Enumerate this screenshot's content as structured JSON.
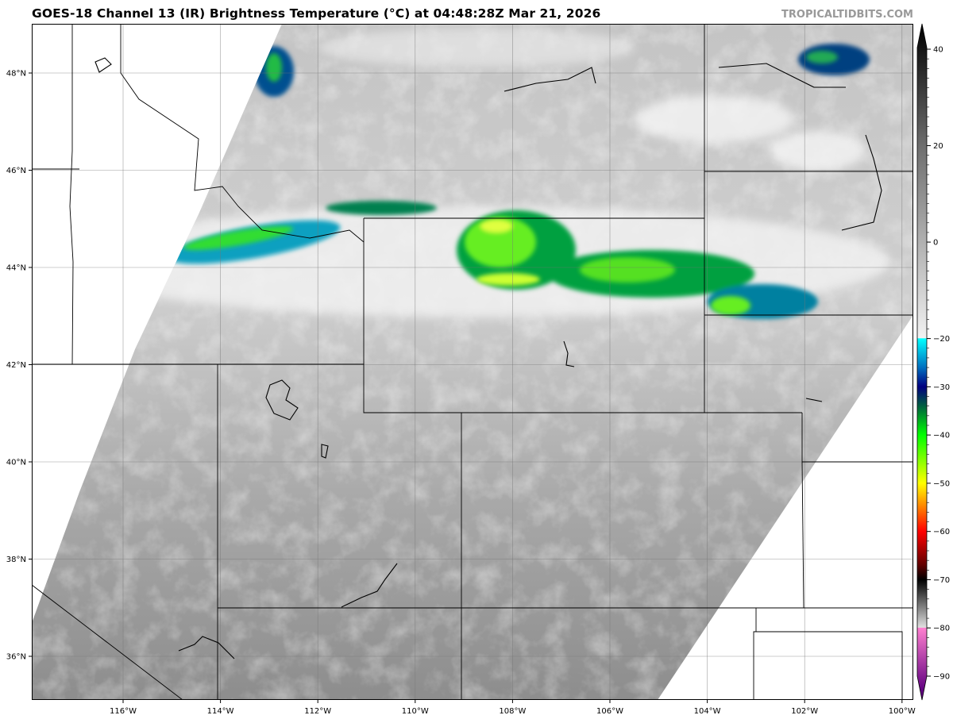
{
  "header": {
    "title": "GOES-18 Channel 13 (IR) Brightness Temperature (°C) at 04:48:28Z Mar 21, 2026",
    "watermark": "TROPICALTIDBITS.COM"
  },
  "map": {
    "latitude_labels": [
      "48°N",
      "46°N",
      "44°N",
      "42°N",
      "40°N",
      "38°N",
      "36°N"
    ],
    "latitudes": [
      48,
      46,
      44,
      42,
      40,
      38,
      36
    ],
    "longitude_labels": [
      "116°W",
      "114°W",
      "112°W",
      "110°W",
      "108°W",
      "106°W",
      "104°W",
      "102°W",
      "100°W"
    ],
    "longitudes": [
      116,
      114,
      112,
      110,
      108,
      106,
      104,
      102,
      100
    ],
    "extent": {
      "lon_west": 117.9,
      "lon_east": 99.8,
      "lat_south": 35.1,
      "lat_north": 49.0
    }
  },
  "colorbar": {
    "range": [
      -93,
      45
    ],
    "tick_values": [
      40,
      20,
      0,
      -20,
      -30,
      -40,
      -50,
      -60,
      -70,
      -80,
      -90
    ],
    "tick_labels": [
      "40",
      "20",
      "0",
      "−20",
      "−30",
      "−40",
      "−50",
      "−60",
      "−70",
      "−80",
      "−90"
    ],
    "stops": [
      {
        "value": 45,
        "color": "#000000"
      },
      {
        "value": 20,
        "color": "#6e6e6e"
      },
      {
        "value": -19.9,
        "color": "#f2f2f2"
      },
      {
        "value": -20,
        "color": "#00ffff"
      },
      {
        "value": -26,
        "color": "#0070c0"
      },
      {
        "value": -30,
        "color": "#000080"
      },
      {
        "value": -34,
        "color": "#006040"
      },
      {
        "value": -40,
        "color": "#00ff00"
      },
      {
        "value": -50,
        "color": "#ffff00"
      },
      {
        "value": -55,
        "color": "#ff8000"
      },
      {
        "value": -60,
        "color": "#ff0000"
      },
      {
        "value": -67,
        "color": "#600000"
      },
      {
        "value": -70,
        "color": "#000000"
      },
      {
        "value": -79.9,
        "color": "#e0e0e0"
      },
      {
        "value": -80,
        "color": "#ff80d0"
      },
      {
        "value": -93,
        "color": "#600080"
      }
    ]
  }
}
